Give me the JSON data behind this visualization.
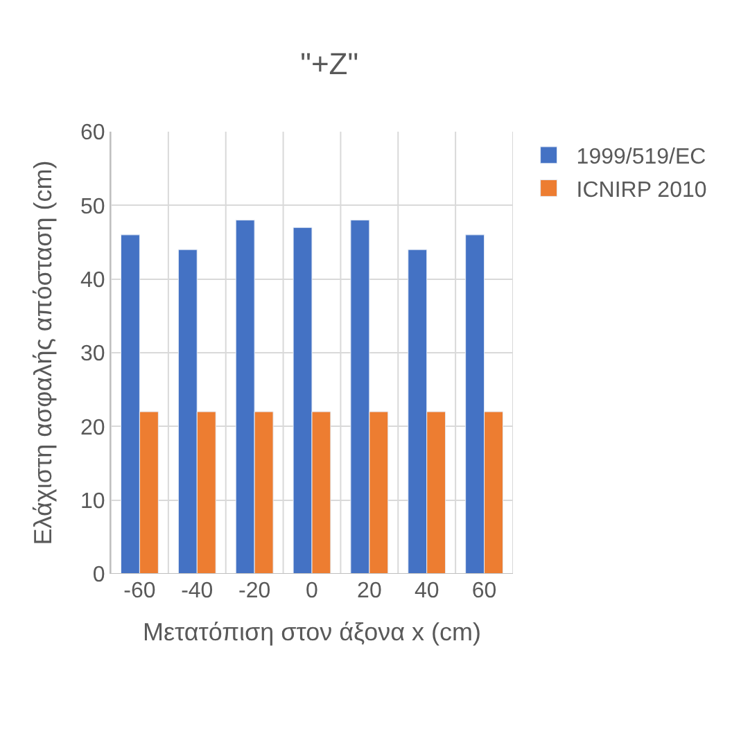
{
  "chart_data": {
    "type": "bar",
    "title": "\"+Z\"",
    "xlabel": "Μετατόπιση στον άξονα x (cm)",
    "ylabel": "Ελάχιστη ασφαλής απόσταση (cm)",
    "categories": [
      "-60",
      "-40",
      "-20",
      "0",
      "20",
      "40",
      "60"
    ],
    "series": [
      {
        "name": "1999/519/EC",
        "color": "#4472c4",
        "values": [
          46,
          44,
          48,
          47,
          48,
          44,
          46
        ]
      },
      {
        "name": "ICNIRP 2010",
        "color": "#ed7d31",
        "values": [
          22,
          22,
          22,
          22,
          22,
          22,
          22
        ]
      }
    ],
    "ylim": [
      0,
      60
    ],
    "yticks": [
      0,
      10,
      20,
      30,
      40,
      50,
      60
    ],
    "grid": true,
    "legend": "top right"
  }
}
